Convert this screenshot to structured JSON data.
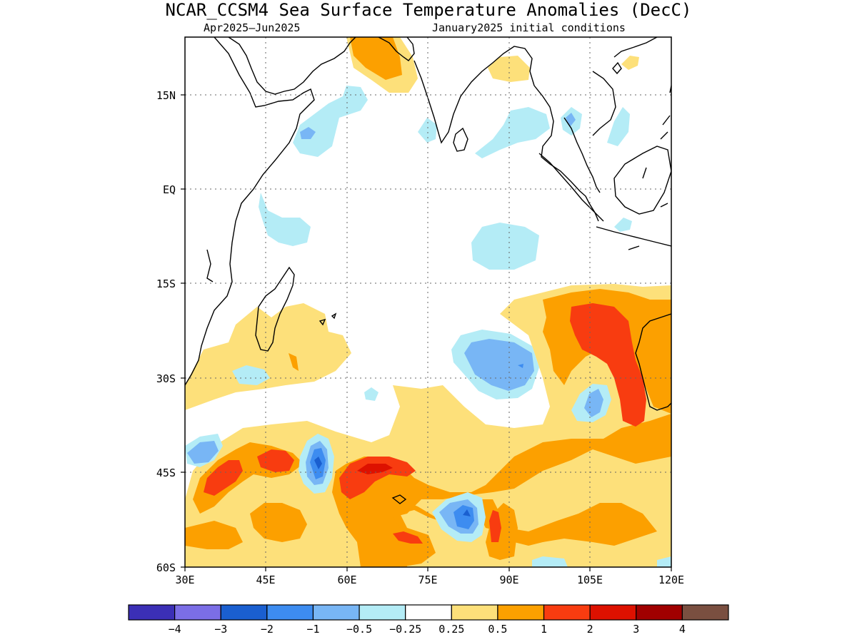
{
  "header": {
    "title": "NCAR_CCSM4 Sea Surface Temperature Anomalies (DecC)",
    "period": "Apr2025–Jun2025",
    "init": "January2025 initial conditions"
  },
  "axes": {
    "lat_labels": [
      "15N",
      "EQ",
      "15S",
      "30S",
      "45S",
      "60S"
    ],
    "lon_labels": [
      "30E",
      "45E",
      "60E",
      "75E",
      "90E",
      "105E",
      "120E"
    ]
  },
  "colorbar": {
    "labels": [
      "−4",
      "−3",
      "−2",
      "−1",
      "−0.5",
      "−0.25",
      "0.25",
      "0.5",
      "1",
      "2",
      "3",
      "4"
    ],
    "colors": [
      "#3b2fb6",
      "#7b6ee6",
      "#1a5fd0",
      "#3d8cf0",
      "#78b6f5",
      "#b4ecf6",
      "#ffffff",
      "#fde07a",
      "#fca000",
      "#f83c10",
      "#dd1100",
      "#a00000",
      "#7a4f40"
    ]
  },
  "map": {
    "region": "Indian Ocean",
    "colors": {
      "light_yellow": "#fde07a",
      "orange": "#fca000",
      "red_orange": "#f83c10",
      "red": "#dd1100",
      "light_cyan": "#b4ecf6",
      "light_blue": "#78b6f5",
      "mid_blue": "#3d8cf0",
      "dark_blue": "#1a5fd0"
    }
  }
}
